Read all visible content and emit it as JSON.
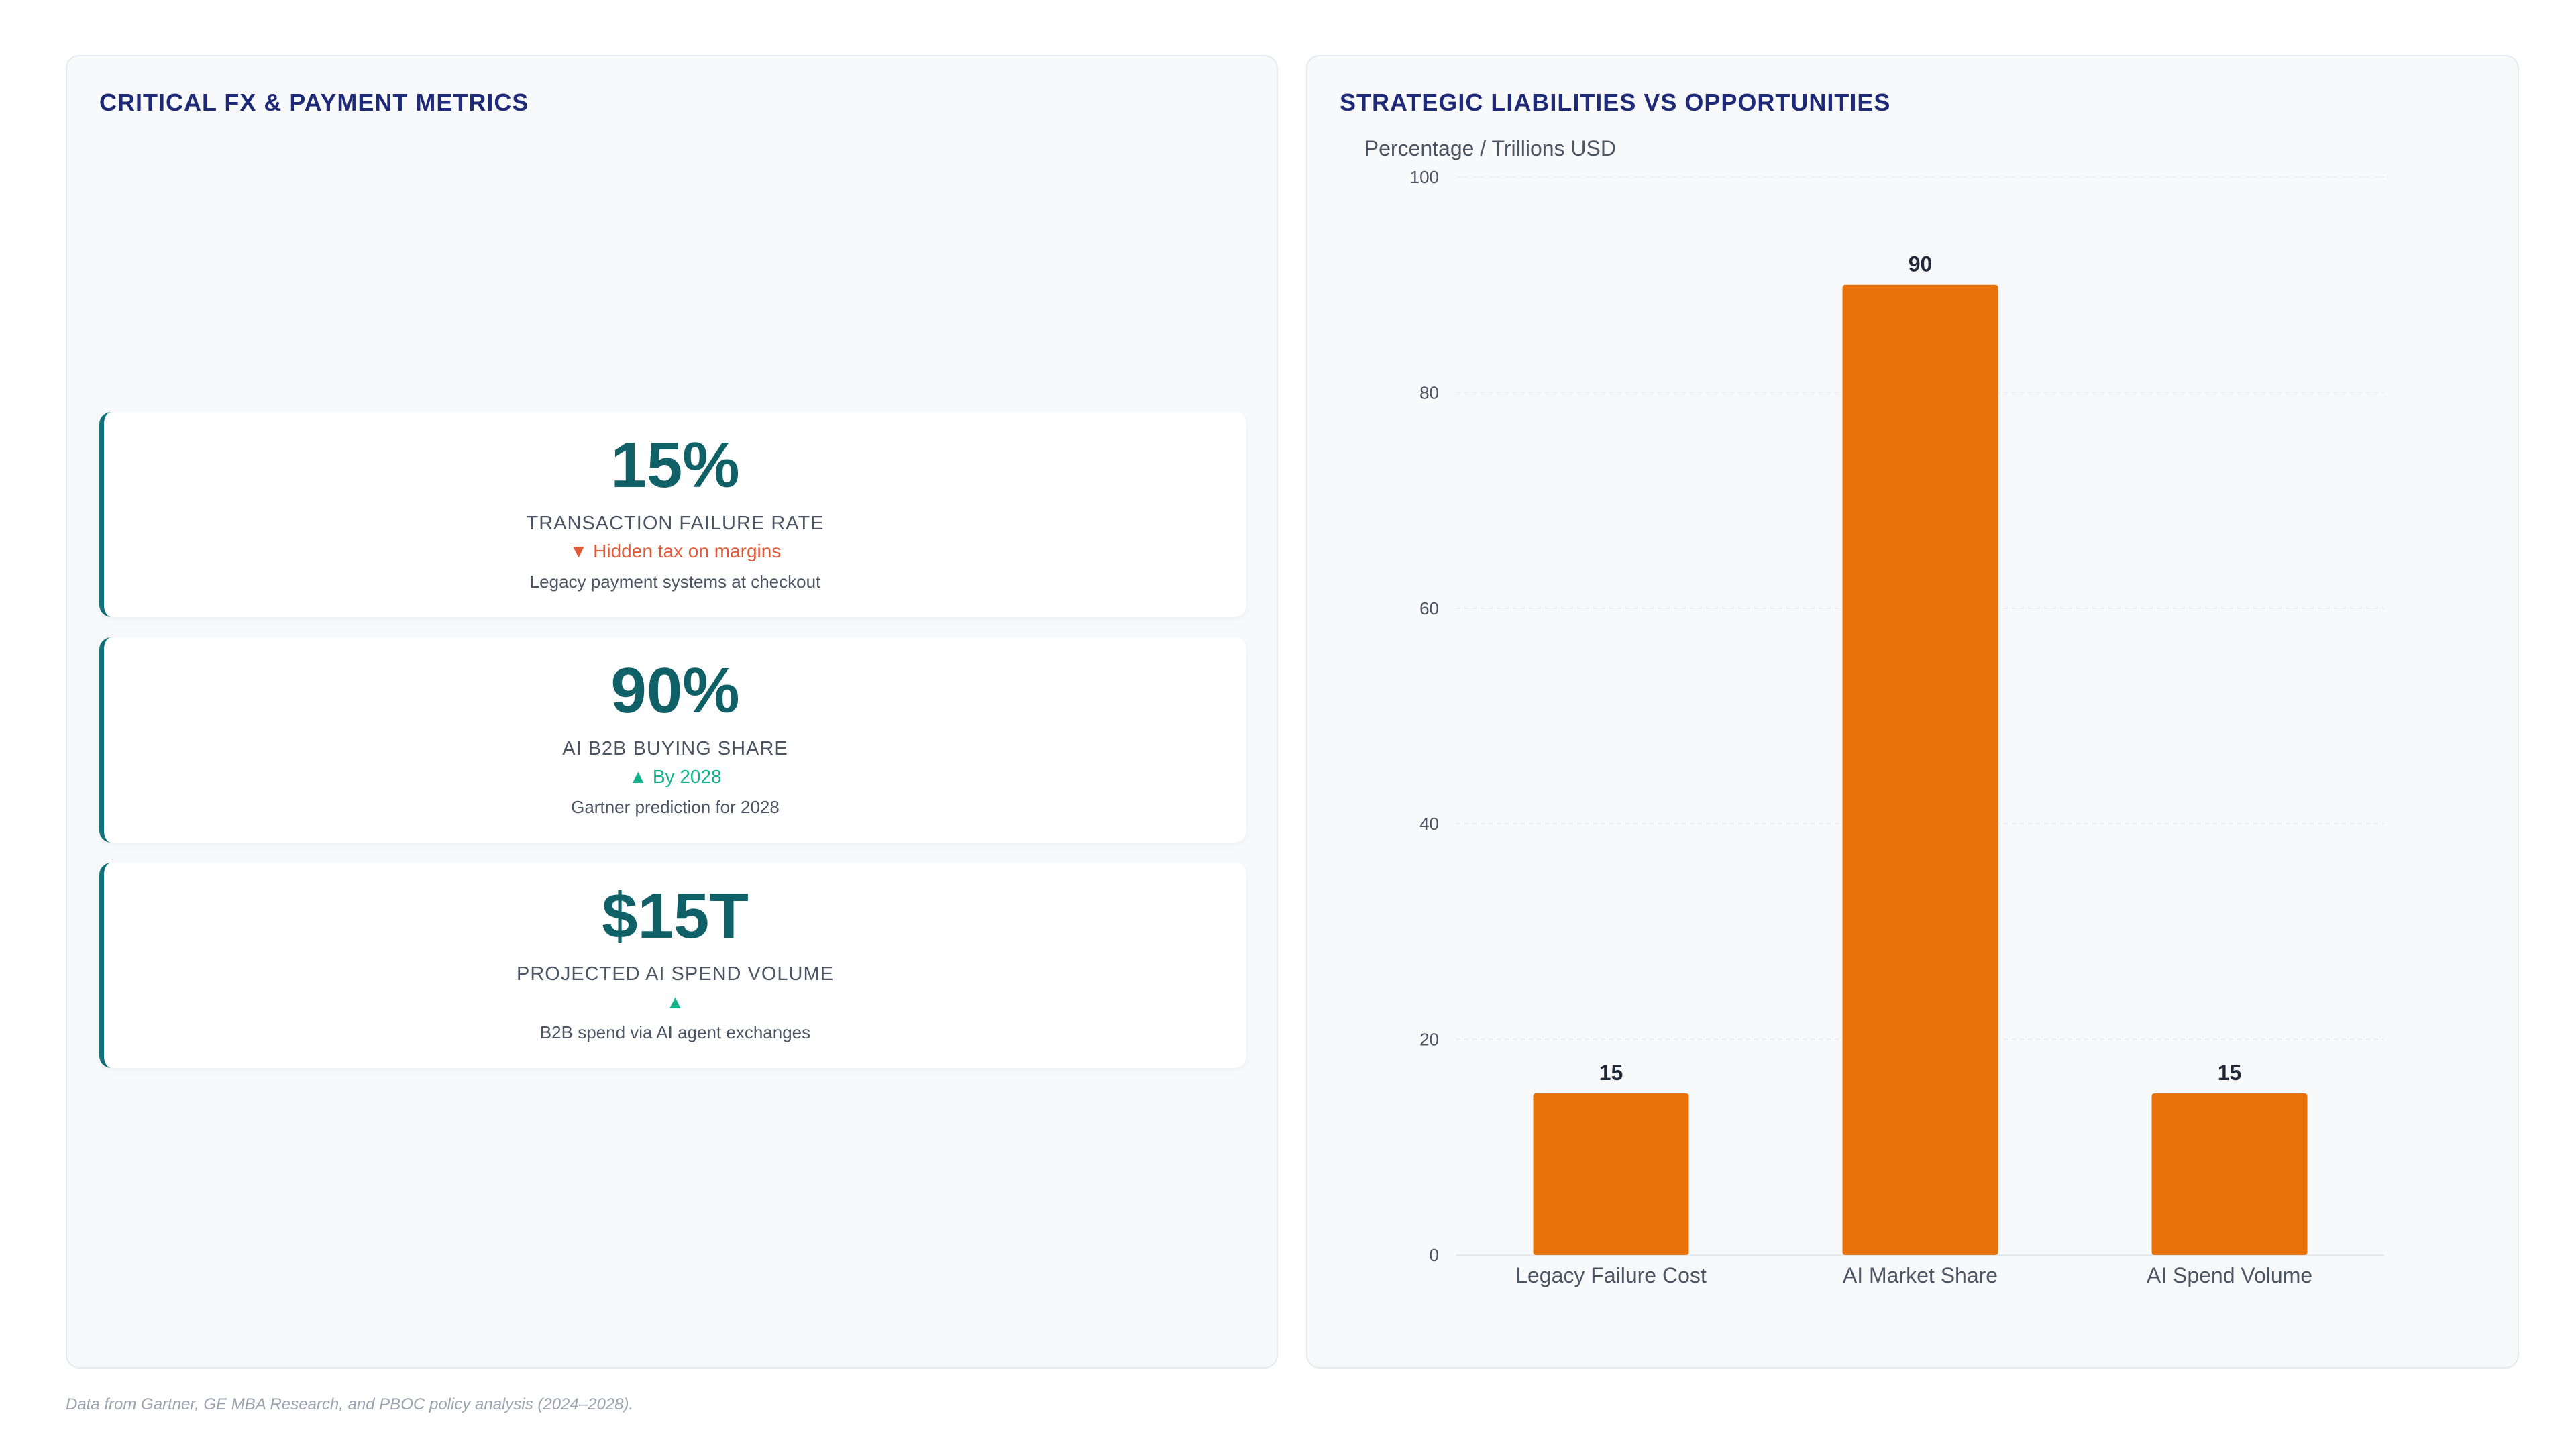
{
  "metrics_panel": {
    "title": "CRITICAL FX & PAYMENT METRICS",
    "cards": [
      {
        "value": "15%",
        "label": "TRANSACTION FAILURE RATE",
        "trend": "▼ Hidden tax on margins",
        "trend_direction": "down",
        "note": "Legacy payment systems at checkout"
      },
      {
        "value": "90%",
        "label": "AI B2B BUYING SHARE",
        "trend": "▲ By 2028",
        "trend_direction": "up",
        "note": "Gartner prediction for 2028"
      },
      {
        "value": "$15T",
        "label": "PROJECTED AI SPEND VOLUME",
        "trend": "▲",
        "trend_direction": "up",
        "note": "B2B spend via AI agent exchanges"
      }
    ]
  },
  "chart_panel": {
    "title": "STRATEGIC LIABILITIES VS OPPORTUNITIES"
  },
  "chart_data": {
    "type": "bar",
    "title": "STRATEGIC LIABILITIES VS OPPORTUNITIES",
    "ylabel": "Percentage / Trillions USD",
    "xlabel": "",
    "categories": [
      "Legacy Failure Cost",
      "AI Market Share",
      "AI Spend Volume"
    ],
    "values": [
      15,
      90,
      15
    ],
    "ylim": [
      0,
      100
    ],
    "yticks": [
      0,
      20,
      40,
      60,
      80,
      100
    ],
    "grid": true,
    "legend": "none",
    "bar_color": "#e8710a",
    "data_labels": true
  },
  "footer": {
    "source": "Data from Gartner, GE MBA Research, and PBOC policy analysis (2024–2028)."
  },
  "colors": {
    "title": "#1e2a78",
    "value": "#0f6167",
    "accent_border": "#13737c",
    "trend_down": "#e05a3a",
    "trend_up": "#10b48a",
    "bar": "#e8710a"
  }
}
